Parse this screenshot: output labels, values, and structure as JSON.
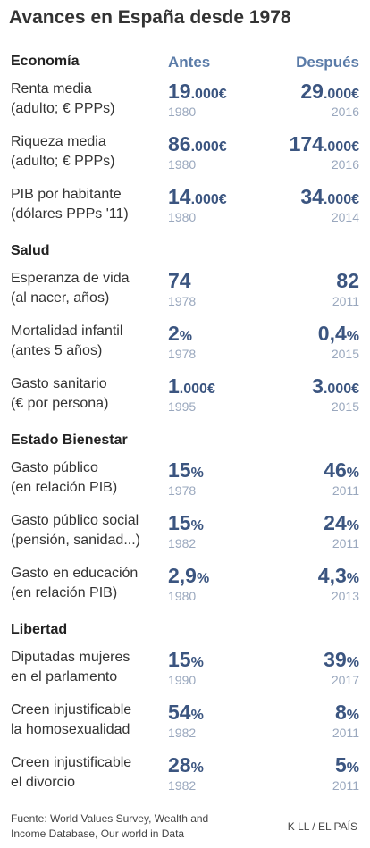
{
  "title": "Avances en España desde 1978",
  "column_headers": {
    "before": "Antes",
    "after": "Después"
  },
  "sections": [
    {
      "name": "Economía",
      "rows": [
        {
          "label": [
            "Renta media",
            "(adulto; € PPPs)"
          ],
          "before": {
            "main": "19",
            "unit": ".000€",
            "year": "1980"
          },
          "after": {
            "main": "29",
            "unit": ".000€",
            "year": "2016"
          }
        },
        {
          "label": [
            "Riqueza media",
            "(adulto; € PPPs)"
          ],
          "before": {
            "main": "86",
            "unit": ".000€",
            "year": "1980"
          },
          "after": {
            "main": "174",
            "unit": ".000€",
            "year": "2016"
          }
        },
        {
          "label": [
            "PIB por habitante",
            "(dólares PPPs '11)"
          ],
          "before": {
            "main": "14",
            "unit": ".000€",
            "year": "1980"
          },
          "after": {
            "main": "34",
            "unit": ".000€",
            "year": "2014"
          }
        }
      ]
    },
    {
      "name": "Salud",
      "rows": [
        {
          "label": [
            "Esperanza de vida",
            "(al nacer, años)"
          ],
          "before": {
            "main": "74",
            "year": "1978"
          },
          "after": {
            "main": "82",
            "year": "2011"
          }
        },
        {
          "label": [
            "Mortalidad infantil",
            "(antes 5 años)"
          ],
          "before": {
            "main": "2",
            "unit": "%",
            "year": "1978"
          },
          "after": {
            "main": "0,4",
            "unit": "%",
            "year": "2015"
          }
        },
        {
          "label": [
            "Gasto sanitario",
            "(€ por persona)"
          ],
          "before": {
            "main": "1",
            "unit": ".000€",
            "year": "1995"
          },
          "after": {
            "main": "3",
            "unit": ".000€",
            "year": "2015"
          }
        }
      ]
    },
    {
      "name": "Estado Bienestar",
      "rows": [
        {
          "label": [
            "Gasto público",
            "(en relación PIB)"
          ],
          "before": {
            "main": "15",
            "unit": "%",
            "year": "1978"
          },
          "after": {
            "main": "46",
            "unit": "%",
            "year": "2011"
          }
        },
        {
          "label": [
            "Gasto público social",
            "(pensión, sanidad...)"
          ],
          "before": {
            "main": "15",
            "unit": "%",
            "year": "1982"
          },
          "after": {
            "main": "24",
            "unit": "%",
            "year": "2011"
          }
        },
        {
          "label": [
            "Gasto en educación",
            "(en relación PIB)"
          ],
          "before": {
            "main": "2,9",
            "unit": "%",
            "year": "1980"
          },
          "after": {
            "main": "4,3",
            "unit": "%",
            "year": "2013"
          }
        }
      ]
    },
    {
      "name": "Libertad",
      "rows": [
        {
          "label": [
            "Diputadas mujeres",
            "en el parlamento"
          ],
          "before": {
            "main": "15",
            "unit": "%",
            "year": "1990"
          },
          "after": {
            "main": "39",
            "unit": "%",
            "year": "2017"
          }
        },
        {
          "label": [
            "Creen injustificable",
            "la homosexualidad"
          ],
          "before": {
            "main": "54",
            "unit": "%",
            "year": "1982"
          },
          "after": {
            "main": "8",
            "unit": "%",
            "year": "2011"
          }
        },
        {
          "label": [
            "Creen injustificable",
            "el divorcio"
          ],
          "before": {
            "main": "28",
            "unit": "%",
            "year": "1982"
          },
          "after": {
            "main": "5",
            "unit": "%",
            "year": "2011"
          }
        }
      ]
    }
  ],
  "footer": {
    "source": [
      "Fuente: World Values Survey, Wealth and",
      "Income Database, Our world in Data"
    ],
    "credit": "K LL / EL PAÍS"
  }
}
